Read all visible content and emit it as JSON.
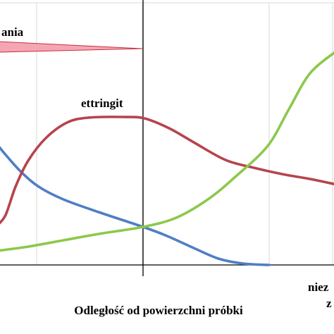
{
  "chart_data": {
    "type": "line",
    "title": "",
    "xlabel": "Odległość od powierzchni próbki",
    "ylabel": "",
    "x_unit": "relative distance",
    "xlim": [
      0,
      100
    ],
    "ylim": [
      0,
      100
    ],
    "grid": true,
    "colors": {
      "blue": "#4f7ec4",
      "red": "#b7434d",
      "green": "#8cc84b",
      "pink_fill": "#f4a7b2",
      "pink_stroke": "#c8303e",
      "grid": "#d9d9d9"
    },
    "series": [
      {
        "name": "",
        "color": "#4f7ec4",
        "x": [
          0,
          5,
          10,
          20,
          35,
          55,
          70,
          75,
          80,
          90,
          100
        ],
        "y": [
          45,
          39,
          34,
          30,
          21,
          11,
          5,
          4,
          2,
          0.5,
          0
        ]
      },
      {
        "name": "ettringit",
        "color": "#b7434d",
        "x": [
          0,
          5,
          10,
          20,
          30,
          40,
          50,
          55,
          65,
          75,
          85,
          90,
          100
        ],
        "y": [
          15,
          31,
          55,
          69,
          76,
          80,
          80,
          79,
          70,
          57,
          40,
          36,
          32
        ]
      },
      {
        "name": "",
        "color": "#8cc84b",
        "x": [
          0,
          10,
          20,
          30,
          40,
          50,
          60,
          70,
          80,
          90,
          100
        ],
        "y": [
          7,
          9,
          11,
          14,
          17,
          20,
          24,
          33,
          49,
          70,
          86
        ]
      }
    ],
    "annotations": [
      {
        "text": "ania",
        "color": "#000000"
      },
      {
        "text": "ettringit",
        "color": "#000000"
      },
      {
        "text": "niez",
        "color": "#000000"
      },
      {
        "text": "z",
        "color": "#000000"
      }
    ],
    "vertical_marker_x": 50
  }
}
